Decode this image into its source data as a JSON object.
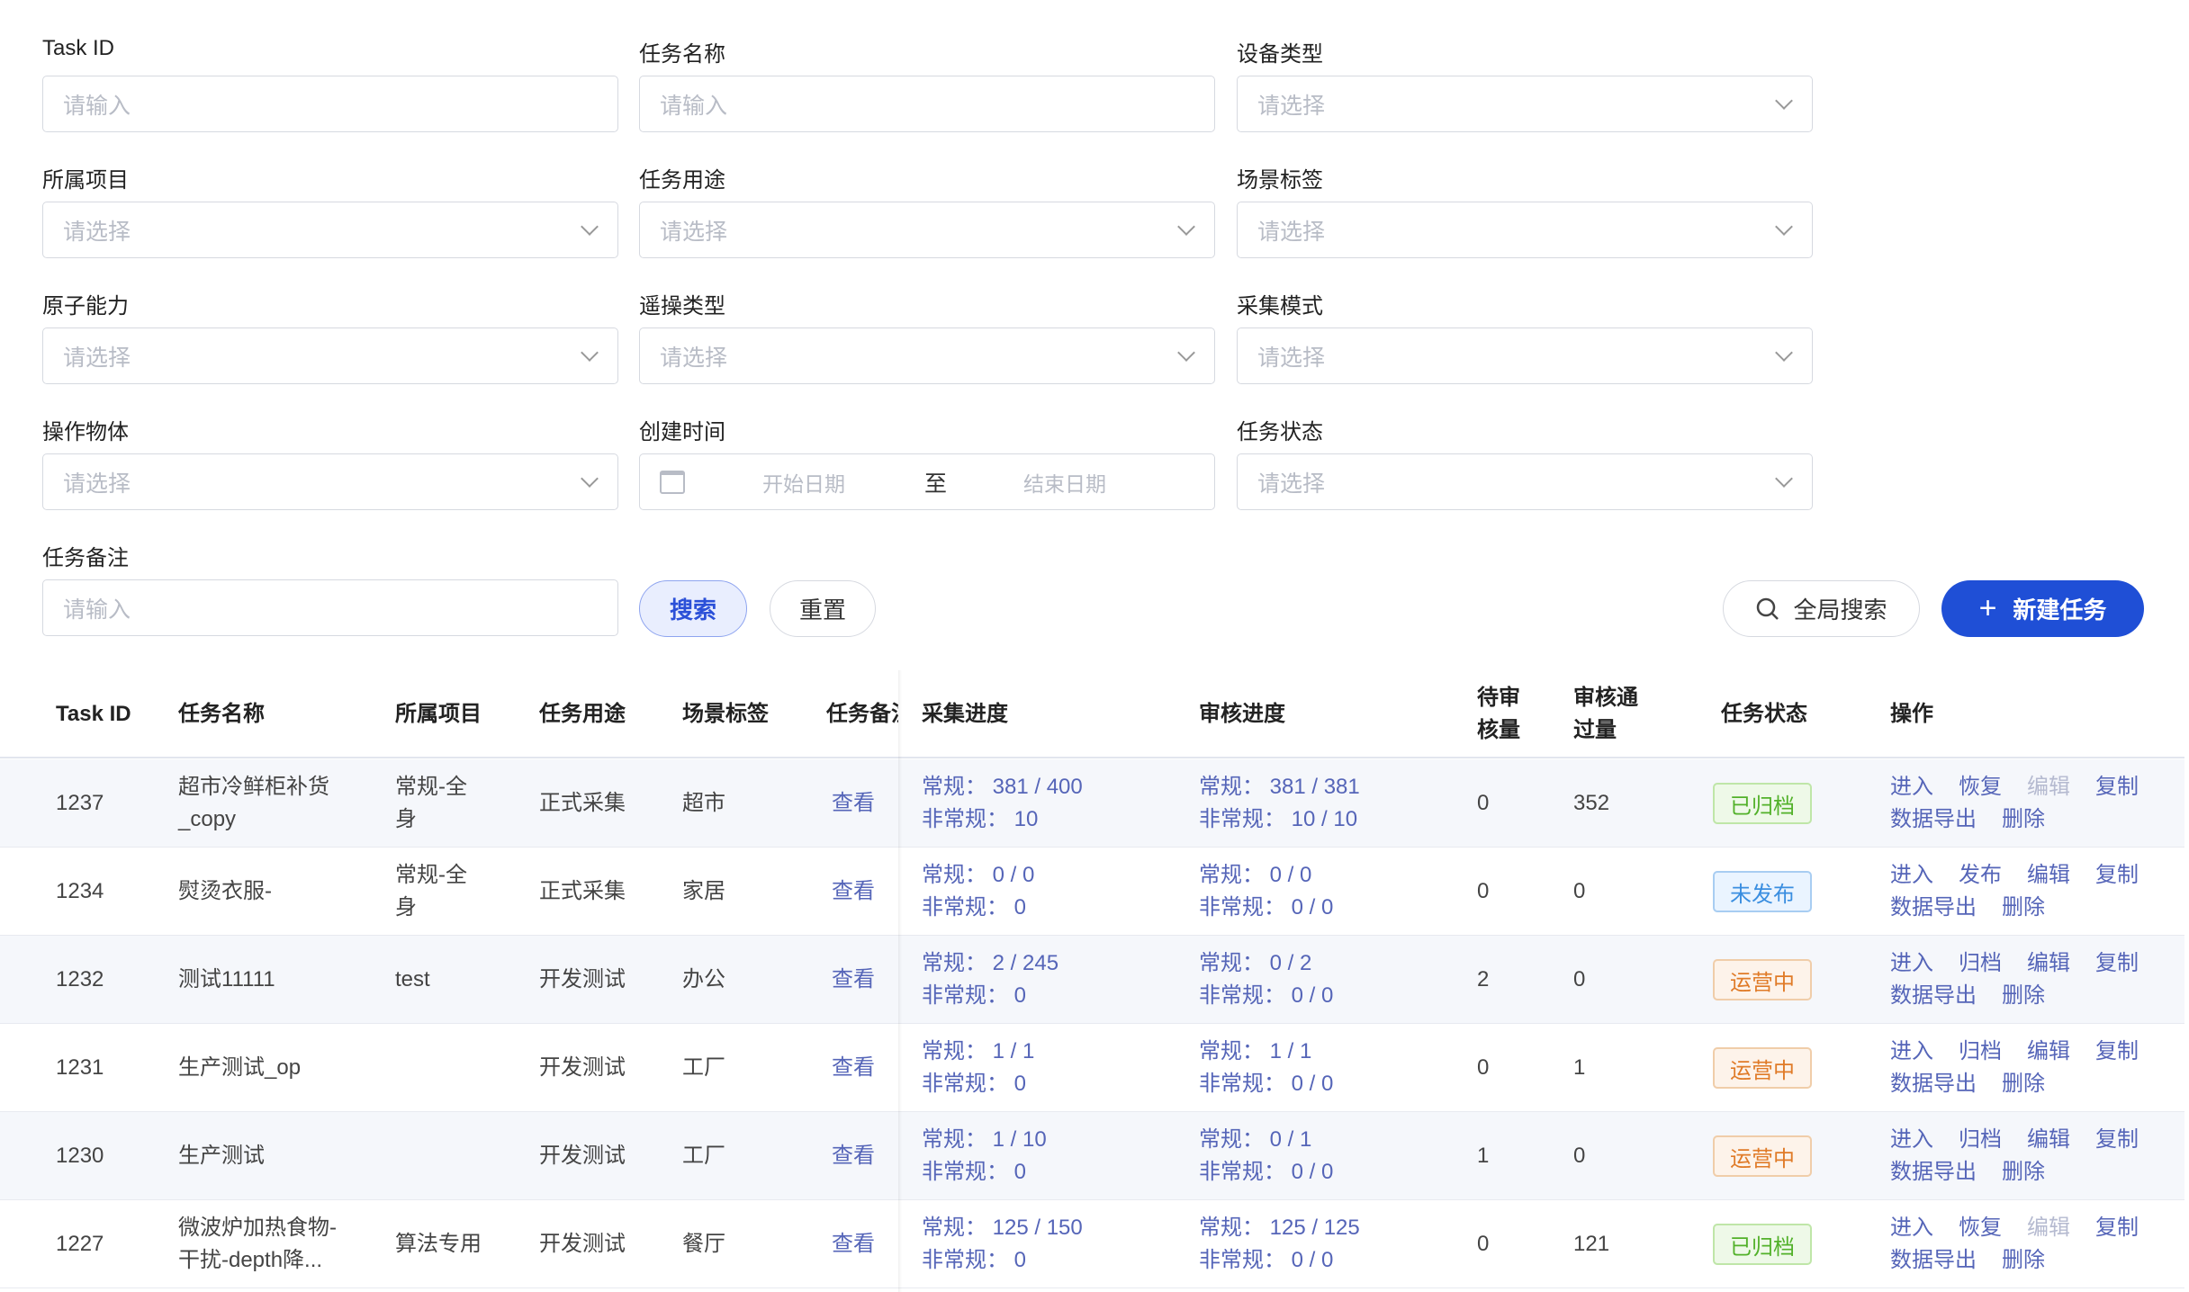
{
  "filters": [
    {
      "label": "Task ID",
      "placeholder": "请输入",
      "type": "input"
    },
    {
      "label": "任务名称",
      "placeholder": "请输入",
      "type": "input"
    },
    {
      "label": "设备类型",
      "placeholder": "请选择",
      "type": "select"
    },
    {
      "label": "所属项目",
      "placeholder": "请选择",
      "type": "select"
    },
    {
      "label": "任务用途",
      "placeholder": "请选择",
      "type": "select"
    },
    {
      "label": "场景标签",
      "placeholder": "请选择",
      "type": "select"
    },
    {
      "label": "原子能力",
      "placeholder": "请选择",
      "type": "select"
    },
    {
      "label": "遥操类型",
      "placeholder": "请选择",
      "type": "select"
    },
    {
      "label": "采集模式",
      "placeholder": "请选择",
      "type": "select"
    },
    {
      "label": "操作物体",
      "placeholder": "请选择",
      "type": "select"
    },
    {
      "label": "创建时间",
      "type": "daterange",
      "start_placeholder": "开始日期",
      "separator": "至",
      "end_placeholder": "结束日期"
    },
    {
      "label": "任务状态",
      "placeholder": "请选择",
      "type": "select"
    },
    {
      "label": "任务备注",
      "placeholder": "请输入",
      "type": "input"
    }
  ],
  "buttons": {
    "search": "搜索",
    "reset": "重置",
    "global_search": "全局搜索",
    "new_task": "新建任务"
  },
  "colors": {
    "primary": "#1f4fd6",
    "link": "#5565b8",
    "archived": "#52b12a",
    "unpublished": "#3a8ee0",
    "running": "#e07b28"
  },
  "table": {
    "headers": [
      "Task ID",
      "任务名称",
      "所属项目",
      "任务用途",
      "场景标签",
      "任务备注",
      "采集进度",
      "审核进度",
      "待审核量",
      "审核通过量",
      "任务状态",
      "操作"
    ],
    "headers_display": {
      "pending": [
        "待审",
        "核量"
      ],
      "passed": [
        "审核通",
        "过量"
      ],
      "remark": "任务备注"
    },
    "rows": [
      {
        "id": "1237",
        "name": [
          "超市冷鲜柜补货",
          "_copy"
        ],
        "project": [
          "常规-全",
          "身"
        ],
        "use": "正式采集",
        "scene": "超市",
        "remark": "查看",
        "collect": [
          "常规： 381 / 400",
          "非常规： 10"
        ],
        "review": [
          "常规： 381 / 381",
          "非常规： 10 / 10"
        ],
        "pending": "0",
        "passed": "352",
        "status": "已归档",
        "status_kind": "archived",
        "actions": [
          {
            "label": "进入"
          },
          {
            "label": "恢复"
          },
          {
            "label": "编辑",
            "disabled": true
          },
          {
            "label": "复制"
          },
          {
            "label": "数据导出"
          },
          {
            "label": "删除"
          }
        ]
      },
      {
        "id": "1234",
        "name": [
          "熨烫衣服-"
        ],
        "project": [
          "常规-全",
          "身"
        ],
        "use": "正式采集",
        "scene": "家居",
        "remark": "查看",
        "collect": [
          "常规： 0 / 0",
          "非常规： 0"
        ],
        "review": [
          "常规： 0 / 0",
          "非常规： 0 / 0"
        ],
        "pending": "0",
        "passed": "0",
        "status": "未发布",
        "status_kind": "unpublished",
        "actions": [
          {
            "label": "进入"
          },
          {
            "label": "发布"
          },
          {
            "label": "编辑"
          },
          {
            "label": "复制"
          },
          {
            "label": "数据导出"
          },
          {
            "label": "删除"
          }
        ]
      },
      {
        "id": "1232",
        "name": [
          "测试11111"
        ],
        "project": [
          "test"
        ],
        "use": "开发测试",
        "scene": "办公",
        "remark": "查看",
        "collect": [
          "常规： 2 / 245",
          "非常规： 0"
        ],
        "review": [
          "常规： 0 / 2",
          "非常规： 0 / 0"
        ],
        "pending": "2",
        "passed": "0",
        "status": "运营中",
        "status_kind": "running",
        "actions": [
          {
            "label": "进入"
          },
          {
            "label": "归档"
          },
          {
            "label": "编辑"
          },
          {
            "label": "复制"
          },
          {
            "label": "数据导出"
          },
          {
            "label": "删除"
          }
        ]
      },
      {
        "id": "1231",
        "name": [
          "生产测试_op"
        ],
        "project": [],
        "use": "开发测试",
        "scene": "工厂",
        "remark": "查看",
        "collect": [
          "常规： 1 / 1",
          "非常规： 0"
        ],
        "review": [
          "常规： 1 / 1",
          "非常规： 0 / 0"
        ],
        "pending": "0",
        "passed": "1",
        "status": "运营中",
        "status_kind": "running",
        "actions": [
          {
            "label": "进入"
          },
          {
            "label": "归档"
          },
          {
            "label": "编辑"
          },
          {
            "label": "复制"
          },
          {
            "label": "数据导出"
          },
          {
            "label": "删除"
          }
        ]
      },
      {
        "id": "1230",
        "name": [
          "生产测试"
        ],
        "project": [],
        "use": "开发测试",
        "scene": "工厂",
        "remark": "查看",
        "collect": [
          "常规： 1 / 10",
          "非常规： 0"
        ],
        "review": [
          "常规： 0 / 1",
          "非常规： 0 / 0"
        ],
        "pending": "1",
        "passed": "0",
        "status": "运营中",
        "status_kind": "running",
        "actions": [
          {
            "label": "进入"
          },
          {
            "label": "归档"
          },
          {
            "label": "编辑"
          },
          {
            "label": "复制"
          },
          {
            "label": "数据导出"
          },
          {
            "label": "删除"
          }
        ]
      },
      {
        "id": "1227",
        "name": [
          "微波炉加热食物-",
          "干扰-depth降..."
        ],
        "project": [
          "算法专用"
        ],
        "use": "开发测试",
        "scene": "餐厅",
        "remark": "查看",
        "collect": [
          "常规： 125 / 150",
          "非常规： 0"
        ],
        "review": [
          "常规： 125 / 125",
          "非常规： 0 / 0"
        ],
        "pending": "0",
        "passed": "121",
        "status": "已归档",
        "status_kind": "archived",
        "actions": [
          {
            "label": "进入"
          },
          {
            "label": "恢复"
          },
          {
            "label": "编辑",
            "disabled": true
          },
          {
            "label": "复制"
          },
          {
            "label": "数据导出"
          },
          {
            "label": "删除"
          }
        ]
      }
    ]
  }
}
